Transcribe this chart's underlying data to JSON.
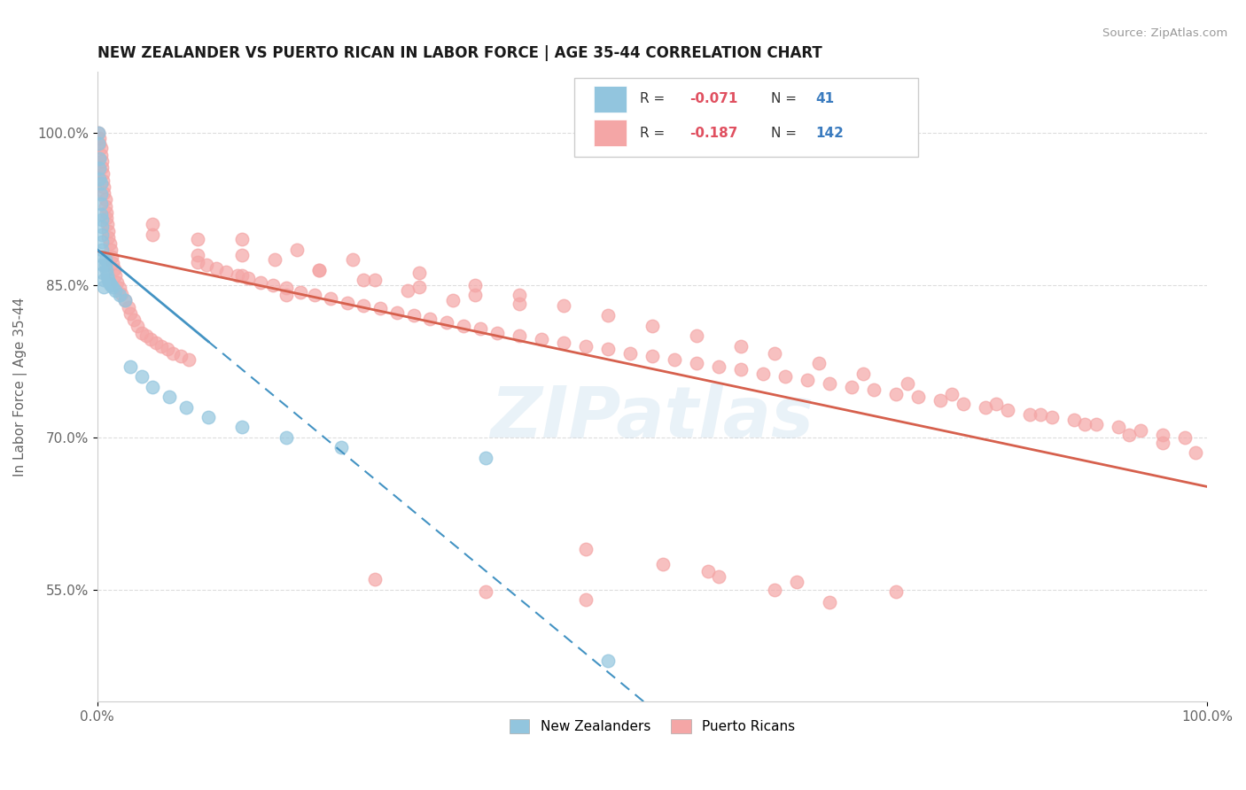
{
  "title": "NEW ZEALANDER VS PUERTO RICAN IN LABOR FORCE | AGE 35-44 CORRELATION CHART",
  "source_text": "Source: ZipAtlas.com",
  "ylabel": "In Labor Force | Age 35-44",
  "xlim": [
    0.0,
    1.0
  ],
  "ylim": [
    0.44,
    1.06
  ],
  "yticks": [
    0.55,
    0.7,
    0.85,
    1.0
  ],
  "ytick_labels": [
    "55.0%",
    "70.0%",
    "85.0%",
    "100.0%"
  ],
  "xticks": [
    0.0,
    1.0
  ],
  "xtick_labels": [
    "0.0%",
    "100.0%"
  ],
  "blue_color": "#92c5de",
  "pink_color": "#f4a6a6",
  "blue_line_color": "#4393c3",
  "pink_line_color": "#d6604d",
  "watermark": "ZIPatlas",
  "background_color": "#ffffff",
  "nz_x": [
    0.001,
    0.001,
    0.002,
    0.002,
    0.002,
    0.003,
    0.003,
    0.003,
    0.003,
    0.004,
    0.004,
    0.004,
    0.004,
    0.004,
    0.005,
    0.005,
    0.005,
    0.006,
    0.006,
    0.007,
    0.007,
    0.008,
    0.009,
    0.01,
    0.011,
    0.012,
    0.014,
    0.016,
    0.02,
    0.025,
    0.03,
    0.04,
    0.05,
    0.065,
    0.08,
    0.1,
    0.13,
    0.17,
    0.22,
    0.35,
    0.46
  ],
  "nz_y": [
    1.0,
    0.99,
    0.975,
    0.965,
    0.955,
    0.95,
    0.94,
    0.93,
    0.92,
    0.915,
    0.908,
    0.9,
    0.893,
    0.885,
    0.878,
    0.87,
    0.862,
    0.855,
    0.848,
    0.875,
    0.87,
    0.865,
    0.86,
    0.855,
    0.852,
    0.85,
    0.848,
    0.845,
    0.84,
    0.835,
    0.77,
    0.76,
    0.75,
    0.74,
    0.73,
    0.72,
    0.71,
    0.7,
    0.69,
    0.68,
    0.48
  ],
  "pr_x": [
    0.001,
    0.002,
    0.002,
    0.003,
    0.003,
    0.004,
    0.004,
    0.005,
    0.005,
    0.006,
    0.006,
    0.007,
    0.007,
    0.008,
    0.008,
    0.009,
    0.01,
    0.01,
    0.011,
    0.012,
    0.013,
    0.014,
    0.015,
    0.016,
    0.018,
    0.02,
    0.022,
    0.025,
    0.028,
    0.03,
    0.033,
    0.036,
    0.04,
    0.044,
    0.048,
    0.053,
    0.058,
    0.063,
    0.068,
    0.075,
    0.082,
    0.09,
    0.098,
    0.107,
    0.116,
    0.126,
    0.136,
    0.147,
    0.158,
    0.17,
    0.183,
    0.196,
    0.21,
    0.225,
    0.24,
    0.255,
    0.27,
    0.285,
    0.3,
    0.315,
    0.33,
    0.345,
    0.36,
    0.38,
    0.4,
    0.42,
    0.44,
    0.46,
    0.48,
    0.5,
    0.52,
    0.54,
    0.56,
    0.58,
    0.6,
    0.62,
    0.64,
    0.66,
    0.68,
    0.7,
    0.72,
    0.74,
    0.76,
    0.78,
    0.8,
    0.82,
    0.84,
    0.86,
    0.88,
    0.9,
    0.92,
    0.94,
    0.96,
    0.98,
    0.05,
    0.09,
    0.13,
    0.17,
    0.05,
    0.09,
    0.16,
    0.2,
    0.24,
    0.28,
    0.32,
    0.13,
    0.2,
    0.25,
    0.29,
    0.34,
    0.38,
    0.13,
    0.18,
    0.23,
    0.29,
    0.34,
    0.38,
    0.42,
    0.46,
    0.5,
    0.54,
    0.58,
    0.61,
    0.65,
    0.69,
    0.73,
    0.77,
    0.81,
    0.85,
    0.89,
    0.93,
    0.96,
    0.99,
    0.44,
    0.51,
    0.56,
    0.61,
    0.66,
    0.25,
    0.35,
    0.44,
    0.55,
    0.63,
    0.72
  ],
  "pr_y": [
    1.0,
    0.995,
    0.99,
    0.985,
    0.978,
    0.972,
    0.966,
    0.96,
    0.953,
    0.947,
    0.941,
    0.935,
    0.928,
    0.922,
    0.916,
    0.91,
    0.903,
    0.897,
    0.891,
    0.885,
    0.878,
    0.872,
    0.866,
    0.86,
    0.853,
    0.847,
    0.841,
    0.835,
    0.828,
    0.822,
    0.816,
    0.81,
    0.803,
    0.8,
    0.797,
    0.793,
    0.79,
    0.787,
    0.783,
    0.78,
    0.777,
    0.873,
    0.87,
    0.867,
    0.863,
    0.86,
    0.857,
    0.853,
    0.85,
    0.847,
    0.843,
    0.84,
    0.837,
    0.833,
    0.83,
    0.827,
    0.823,
    0.82,
    0.817,
    0.813,
    0.81,
    0.807,
    0.803,
    0.8,
    0.797,
    0.793,
    0.79,
    0.787,
    0.783,
    0.78,
    0.777,
    0.773,
    0.77,
    0.767,
    0.763,
    0.76,
    0.757,
    0.753,
    0.75,
    0.747,
    0.743,
    0.74,
    0.737,
    0.733,
    0.73,
    0.727,
    0.723,
    0.72,
    0.717,
    0.713,
    0.71,
    0.707,
    0.703,
    0.7,
    0.9,
    0.88,
    0.86,
    0.84,
    0.91,
    0.895,
    0.875,
    0.865,
    0.855,
    0.845,
    0.835,
    0.88,
    0.865,
    0.855,
    0.848,
    0.84,
    0.832,
    0.895,
    0.885,
    0.875,
    0.862,
    0.85,
    0.84,
    0.83,
    0.82,
    0.81,
    0.8,
    0.79,
    0.783,
    0.773,
    0.763,
    0.753,
    0.743,
    0.733,
    0.723,
    0.713,
    0.703,
    0.695,
    0.685,
    0.59,
    0.575,
    0.563,
    0.55,
    0.538,
    0.56,
    0.548,
    0.54,
    0.568,
    0.558,
    0.548
  ]
}
